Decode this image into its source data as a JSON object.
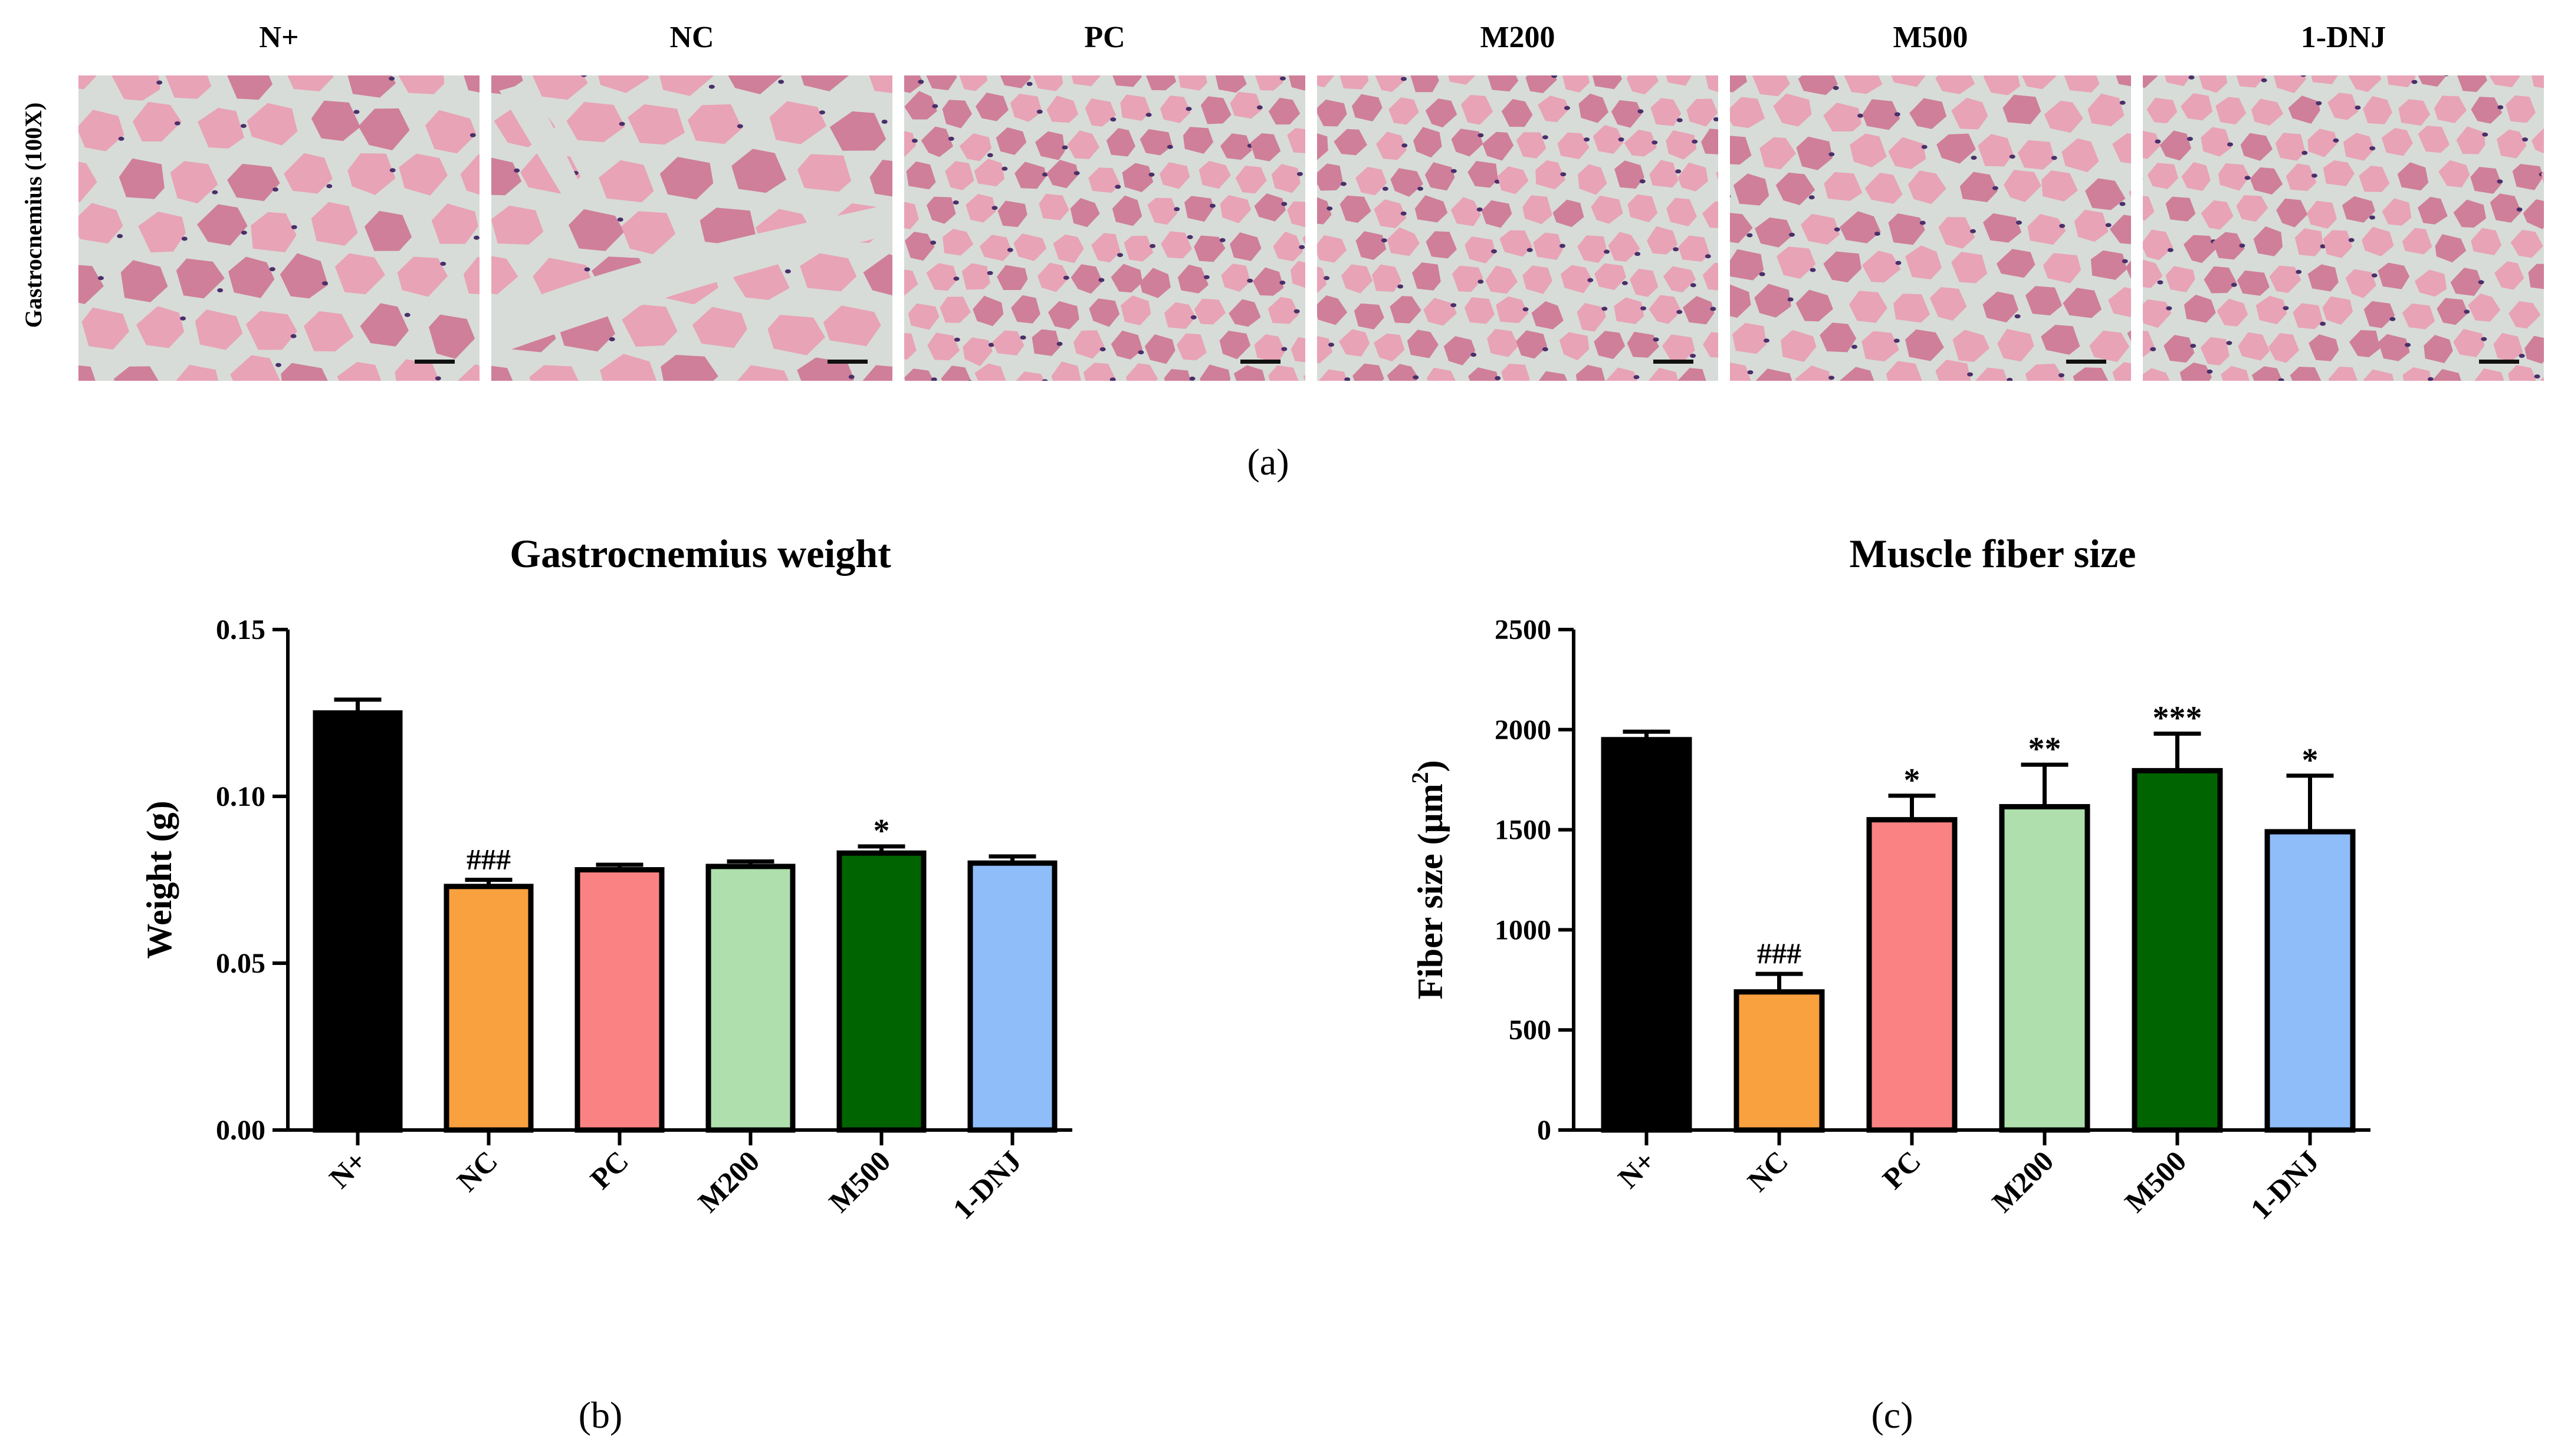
{
  "panel_a": {
    "row_label": "Gastrocnemius (100X)",
    "images": [
      {
        "label": "N+",
        "density": "low"
      },
      {
        "label": "NC",
        "density": "atrophy"
      },
      {
        "label": "PC",
        "density": "high"
      },
      {
        "label": "M200",
        "density": "high"
      },
      {
        "label": "M500",
        "density": "medium"
      },
      {
        "label": "1-DNJ",
        "density": "high"
      }
    ],
    "tissue_colors": {
      "background": "#d7dcd8",
      "fiber": "#e8a3b6",
      "fiber_dark": "#cf7f99",
      "nucleus": "#4a2f6a"
    },
    "caption": "(a)"
  },
  "chart_data": [
    {
      "type": "bar",
      "title": "Gastrocnemius weight",
      "xlabel": "",
      "ylabel": "Weight (g)",
      "categories": [
        "N+",
        "NC",
        "PC",
        "M200",
        "M500",
        "1-DNJ"
      ],
      "values": [
        0.125,
        0.073,
        0.078,
        0.079,
        0.083,
        0.08
      ],
      "errors": [
        0.004,
        0.002,
        0.0015,
        0.0015,
        0.002,
        0.002
      ],
      "colors": [
        "#000000",
        "#f9a03f",
        "#fb8283",
        "#aedfac",
        "#006400",
        "#8fbdf9"
      ],
      "annotations": [
        "",
        "###",
        "",
        "",
        "*",
        ""
      ],
      "ylim": [
        0,
        0.15
      ],
      "yticks": [
        "0.00",
        "0.05",
        "0.10",
        "0.15"
      ],
      "ytick_values": [
        0,
        0.05,
        0.1,
        0.15
      ],
      "caption": "(b)"
    },
    {
      "type": "bar",
      "title": "Muscle fiber size",
      "xlabel": "",
      "ylabel_main": "Fiber size (μm",
      "ylabel_sup": "2",
      "ylabel_end": ")",
      "categories": [
        "N+",
        "NC",
        "PC",
        "M200",
        "M500",
        "1-DNJ"
      ],
      "values": [
        1950,
        690,
        1550,
        1615,
        1795,
        1490
      ],
      "errors": [
        40,
        90,
        120,
        210,
        185,
        280
      ],
      "colors": [
        "#000000",
        "#f9a03f",
        "#fb8283",
        "#aedfac",
        "#006400",
        "#8fbdf9"
      ],
      "annotations": [
        "",
        "###",
        "*",
        "**",
        "***",
        "*"
      ],
      "ylim": [
        0,
        2500
      ],
      "yticks": [
        "0",
        "500",
        "1000",
        "1500",
        "2000",
        "2500"
      ],
      "ytick_values": [
        0,
        500,
        1000,
        1500,
        2000,
        2500
      ],
      "caption": "(c)"
    }
  ]
}
